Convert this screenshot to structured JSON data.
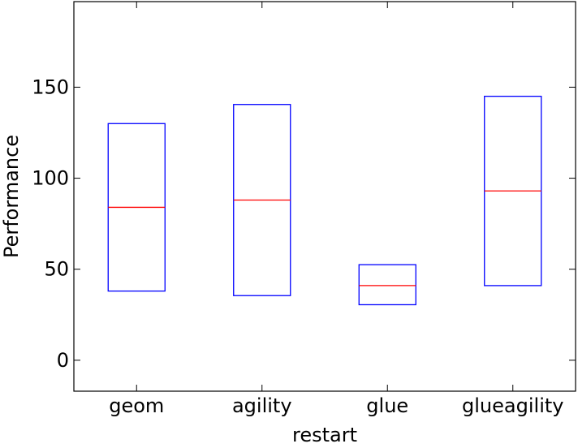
{
  "chart_data": {
    "type": "box",
    "title": "",
    "xlabel": "restart",
    "ylabel": "Performance",
    "categories": [
      "geom",
      "agility",
      "glue",
      "glueagility"
    ],
    "boxes": [
      {
        "category": "geom",
        "q1": 38,
        "median": 84,
        "q3": 130
      },
      {
        "category": "agility",
        "q1": 35.5,
        "median": 88,
        "q3": 140.5
      },
      {
        "category": "glue",
        "q1": 30.5,
        "median": 41,
        "q3": 52.5
      },
      {
        "category": "glueagility",
        "q1": 41,
        "median": 93,
        "q3": 145
      }
    ],
    "ylim": [
      -17,
      197
    ],
    "yticks": [
      0,
      50,
      100,
      150
    ],
    "grid": false,
    "legend": "none",
    "colors": {
      "box": "#0000ff",
      "median": "#ff0000",
      "axes": "#000000"
    }
  }
}
